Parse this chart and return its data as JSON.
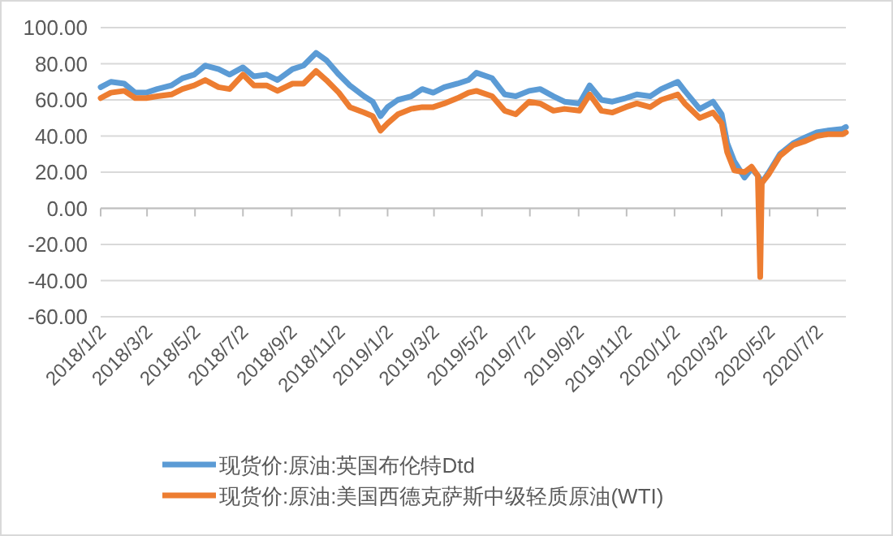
{
  "chart_data": {
    "type": "line",
    "grid": "y",
    "legend": "bottom",
    "x": [
      "2018-01-02",
      "2018-01-15",
      "2018-02-01",
      "2018-02-15",
      "2018-03-01",
      "2018-03-15",
      "2018-04-02",
      "2018-04-16",
      "2018-05-01",
      "2018-05-15",
      "2018-06-01",
      "2018-06-15",
      "2018-07-02",
      "2018-07-16",
      "2018-08-01",
      "2018-08-15",
      "2018-09-03",
      "2018-09-17",
      "2018-10-03",
      "2018-10-16",
      "2018-11-01",
      "2018-11-15",
      "2018-12-03",
      "2018-12-14",
      "2018-12-24",
      "2019-01-02",
      "2019-01-15",
      "2019-02-01",
      "2019-02-15",
      "2019-03-01",
      "2019-03-15",
      "2019-04-01",
      "2019-04-15",
      "2019-04-25",
      "2019-05-15",
      "2019-05-31",
      "2019-06-14",
      "2019-07-01",
      "2019-07-15",
      "2019-08-01",
      "2019-08-15",
      "2019-09-03",
      "2019-09-16",
      "2019-10-01",
      "2019-10-15",
      "2019-11-01",
      "2019-11-15",
      "2019-12-02",
      "2019-12-16",
      "2020-01-06",
      "2020-01-15",
      "2020-02-03",
      "2020-02-20",
      "2020-03-02",
      "2020-03-09",
      "2020-03-18",
      "2020-03-31",
      "2020-04-09",
      "2020-04-17",
      "2020-04-20",
      "2020-04-22",
      "2020-05-01",
      "2020-05-15",
      "2020-06-01",
      "2020-06-15",
      "2020-07-01",
      "2020-07-15",
      "2020-08-03",
      "2020-08-07"
    ],
    "series": [
      {
        "name": "现货价:原油:英国布伦特Dtd",
        "color": "#5b9bd5",
        "values": [
          67,
          70,
          69,
          64,
          64,
          66,
          68,
          72,
          74,
          79,
          77,
          74,
          78,
          73,
          74,
          71,
          77,
          79,
          86,
          82,
          74,
          68,
          62,
          59,
          51,
          56,
          60,
          62,
          66,
          64,
          67,
          69,
          71,
          75,
          72,
          63,
          62,
          65,
          66,
          62,
          59,
          58,
          68,
          60,
          59,
          61,
          63,
          62,
          66,
          70,
          65,
          55,
          59,
          52,
          36,
          26,
          17,
          22,
          18,
          16,
          14,
          20,
          30,
          36,
          39,
          42,
          43,
          44,
          45
        ]
      },
      {
        "name": "现货价:原油:美国西德克萨斯中级轻质原油(WTI)",
        "color": "#ed7d31",
        "values": [
          61,
          64,
          65,
          61,
          61,
          62,
          63,
          66,
          68,
          71,
          67,
          66,
          74,
          68,
          68,
          65,
          69,
          69,
          76,
          71,
          64,
          56,
          53,
          51,
          43,
          47,
          52,
          55,
          56,
          56,
          58,
          61,
          64,
          65,
          62,
          54,
          52,
          59,
          58,
          54,
          55,
          54,
          63,
          54,
          53,
          56,
          58,
          56,
          60,
          63,
          58,
          50,
          53,
          47,
          31,
          21,
          20,
          23,
          18,
          -38,
          14,
          19,
          29,
          35,
          37,
          40,
          41,
          41,
          42
        ]
      }
    ],
    "xlim": [
      "2018-01-02",
      "2020-08-07"
    ],
    "xticks": [
      {
        "value": "2018-01-02",
        "label": "2018/1/2"
      },
      {
        "value": "2018-03-02",
        "label": "2018/3/2"
      },
      {
        "value": "2018-05-02",
        "label": "2018/5/2"
      },
      {
        "value": "2018-07-02",
        "label": "2018/7/2"
      },
      {
        "value": "2018-09-02",
        "label": "2018/9/2"
      },
      {
        "value": "2018-11-02",
        "label": "2018/11/2"
      },
      {
        "value": "2019-01-02",
        "label": "2019/1/2"
      },
      {
        "value": "2019-03-02",
        "label": "2019/3/2"
      },
      {
        "value": "2019-05-02",
        "label": "2019/5/2"
      },
      {
        "value": "2019-07-02",
        "label": "2019/7/2"
      },
      {
        "value": "2019-09-02",
        "label": "2019/9/2"
      },
      {
        "value": "2019-11-02",
        "label": "2019/11/2"
      },
      {
        "value": "2020-01-02",
        "label": "2020/1/2"
      },
      {
        "value": "2020-03-02",
        "label": "2020/3/2"
      },
      {
        "value": "2020-05-02",
        "label": "2020/5/2"
      },
      {
        "value": "2020-07-02",
        "label": "2020/7/2"
      }
    ],
    "ylim": [
      -60,
      100
    ],
    "yticks": [
      {
        "value": -60,
        "label": "-60.00"
      },
      {
        "value": -40,
        "label": "-40.00"
      },
      {
        "value": -20,
        "label": "-20.00"
      },
      {
        "value": 0,
        "label": "0.00"
      },
      {
        "value": 20,
        "label": "20.00"
      },
      {
        "value": 40,
        "label": "40.00"
      },
      {
        "value": 60,
        "label": "60.00"
      },
      {
        "value": 80,
        "label": "80.00"
      },
      {
        "value": 100,
        "label": "100.00"
      }
    ]
  }
}
